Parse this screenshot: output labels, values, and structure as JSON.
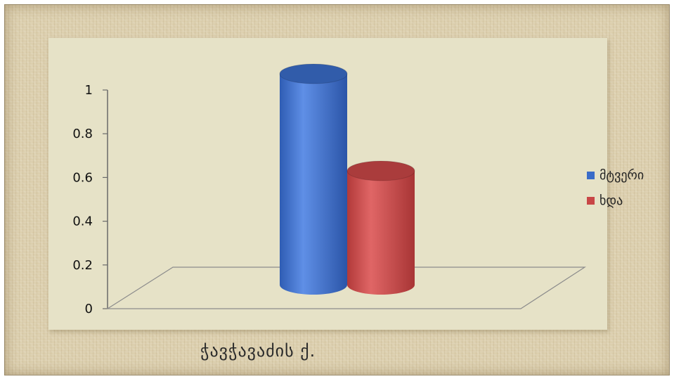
{
  "chart_data": {
    "type": "bar",
    "style": "3d-cylinder",
    "categories": [
      ""
    ],
    "series": [
      {
        "name": "მტვერი",
        "values": [
          1.0
        ],
        "color": "#3a6cc8"
      },
      {
        "name": "ხდა",
        "values": [
          0.54
        ],
        "color": "#c84646"
      }
    ],
    "ylim": [
      0,
      1
    ],
    "yticks": [
      "0",
      "0.2",
      "0.4",
      "0.6",
      "0.8",
      "1"
    ],
    "legend_position": "right",
    "grid": false
  },
  "caption": "ჭავჭავაძის ქ."
}
